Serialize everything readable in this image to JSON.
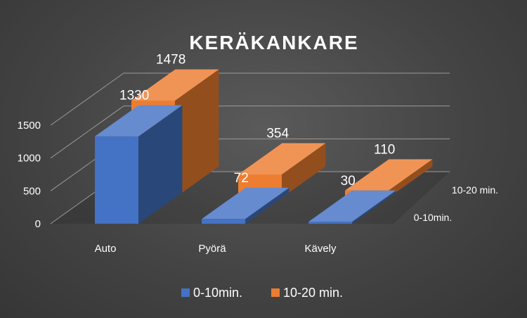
{
  "chart_data": {
    "type": "bar",
    "title": "KERÄKANKARE",
    "categories": [
      "Auto",
      "Pyörä",
      "Kävely"
    ],
    "series": [
      {
        "name": "0-10min.",
        "values": [
          1330,
          72,
          30
        ],
        "color": "#4472C4"
      },
      {
        "name": "10-20 min.",
        "values": [
          1478,
          354,
          110
        ],
        "color": "#ED7D31"
      }
    ],
    "ylim": [
      0,
      1500
    ],
    "yticks": [
      "0",
      "500",
      "1000",
      "1500"
    ],
    "legend": [
      "0-10min.",
      "10-20 min."
    ],
    "legend_position": "bottom",
    "grid": true,
    "style": "3d-column"
  }
}
